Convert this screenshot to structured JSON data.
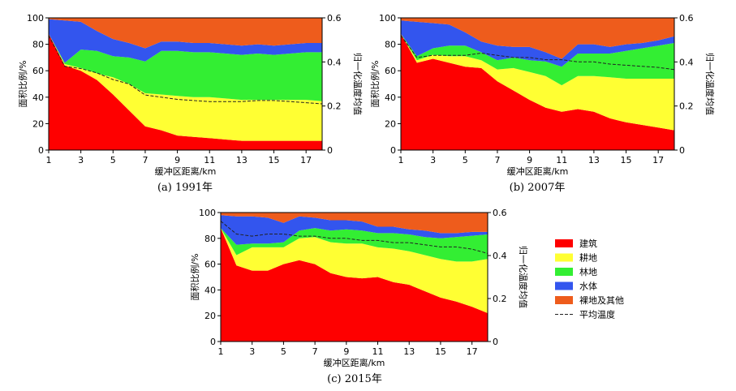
{
  "colors": {
    "建筑": "#fe0000",
    "耕地": "#ffff33",
    "林地": "#33ee33",
    "水体": "#3355ee",
    "裸地及其他": "#ee5c1c",
    "平均温度": "#222222"
  },
  "legend": {
    "items": [
      {
        "key": "建筑",
        "label": "建筑",
        "kind": "box"
      },
      {
        "key": "耕地",
        "label": "耕地",
        "kind": "box"
      },
      {
        "key": "林地",
        "label": "林地",
        "kind": "box"
      },
      {
        "key": "水体",
        "label": "水体",
        "kind": "box"
      },
      {
        "key": "裸地及其他",
        "label": "裸地及其他",
        "kind": "box"
      },
      {
        "key": "平均温度",
        "label": "平均温度",
        "kind": "dash"
      }
    ]
  },
  "chart_data": [
    {
      "type": "area",
      "stacked": true,
      "caption": "(a) 1991年",
      "xlabel": "缓冲区距离/km",
      "ylabel": "面积比例/%",
      "y2label": "归一化温度均值",
      "x": [
        1,
        2,
        3,
        4,
        5,
        6,
        7,
        8,
        9,
        10,
        11,
        12,
        13,
        14,
        15,
        16,
        17,
        18
      ],
      "xticks": [
        1,
        3,
        5,
        7,
        9,
        11,
        13,
        15,
        17
      ],
      "ylim": [
        0,
        100
      ],
      "yticks": [
        0,
        20,
        40,
        60,
        80,
        100
      ],
      "y2lim": [
        0,
        0.6
      ],
      "y2ticks": [
        0,
        0.2,
        0.4,
        0.6
      ],
      "series": [
        {
          "name": "建筑",
          "values": [
            88,
            64,
            60,
            53,
            42,
            30,
            18,
            15,
            11,
            10,
            9,
            8,
            7,
            7,
            7,
            7,
            7,
            7
          ]
        },
        {
          "name": "耕地",
          "values": [
            0,
            1,
            2,
            5,
            13,
            20,
            25,
            27,
            30,
            30,
            31,
            31,
            31,
            31,
            31,
            31,
            31,
            30
          ]
        },
        {
          "name": "林地",
          "values": [
            0,
            1,
            14,
            17,
            16,
            20,
            24,
            33,
            34,
            34,
            34,
            34,
            34,
            35,
            34,
            35,
            36,
            37
          ]
        },
        {
          "name": "水体",
          "values": [
            11,
            32,
            21,
            15,
            13,
            11,
            10,
            7,
            7,
            7,
            7,
            7,
            7,
            7,
            7,
            7,
            7,
            7
          ]
        },
        {
          "name": "裸地及其他",
          "values": [
            1,
            2,
            3,
            10,
            16,
            19,
            23,
            18,
            18,
            19,
            19,
            20,
            21,
            20,
            21,
            20,
            19,
            19
          ]
        }
      ],
      "line": {
        "name": "平均温度",
        "values": [
          0.52,
          0.38,
          0.37,
          0.35,
          0.32,
          0.3,
          0.25,
          0.24,
          0.23,
          0.225,
          0.22,
          0.22,
          0.22,
          0.225,
          0.225,
          0.22,
          0.215,
          0.21
        ]
      }
    },
    {
      "type": "area",
      "stacked": true,
      "caption": "(b) 2007年",
      "xlabel": "缓冲区距离/km",
      "ylabel": "面积比例/%",
      "y2label": "归一化温度均值",
      "x": [
        1,
        2,
        3,
        4,
        5,
        6,
        7,
        8,
        9,
        10,
        11,
        12,
        13,
        14,
        15,
        16,
        17,
        18
      ],
      "xticks": [
        1,
        3,
        5,
        7,
        9,
        11,
        13,
        15,
        17
      ],
      "ylim": [
        0,
        100
      ],
      "yticks": [
        0,
        20,
        40,
        60,
        80,
        100
      ],
      "y2lim": [
        0,
        0.6
      ],
      "y2ticks": [
        0,
        0.2,
        0.4,
        0.6
      ],
      "series": [
        {
          "name": "建筑",
          "values": [
            88,
            66,
            69,
            66,
            63,
            62,
            52,
            45,
            38,
            32,
            29,
            31,
            29,
            24,
            21,
            19,
            17,
            15
          ]
        },
        {
          "name": "耕地",
          "values": [
            0,
            2,
            3,
            5,
            8,
            6,
            9,
            17,
            21,
            24,
            20,
            25,
            27,
            31,
            33,
            35,
            37,
            39
          ]
        },
        {
          "name": "林地",
          "values": [
            0,
            3,
            5,
            8,
            8,
            6,
            7,
            8,
            9,
            11,
            14,
            17,
            17,
            18,
            21,
            23,
            25,
            27
          ]
        },
        {
          "name": "水体",
          "values": [
            10,
            26,
            19,
            16,
            10,
            8,
            11,
            8,
            10,
            7,
            6,
            7,
            7,
            5,
            5,
            4,
            4,
            5
          ]
        },
        {
          "name": "裸地及其他",
          "values": [
            2,
            3,
            4,
            5,
            11,
            18,
            21,
            22,
            22,
            26,
            31,
            20,
            20,
            22,
            20,
            19,
            17,
            14
          ]
        }
      ],
      "line": {
        "name": "平均温度",
        "values": [
          0.52,
          0.42,
          0.43,
          0.43,
          0.43,
          0.44,
          0.43,
          0.42,
          0.42,
          0.41,
          0.41,
          0.4,
          0.4,
          0.39,
          0.385,
          0.38,
          0.375,
          0.365
        ]
      }
    },
    {
      "type": "area",
      "stacked": true,
      "caption": "(c) 2015年",
      "xlabel": "缓冲区距离/km",
      "ylabel": "面积比例/%",
      "y2label": "归一化温度均值",
      "x": [
        1,
        2,
        3,
        4,
        5,
        6,
        7,
        8,
        9,
        10,
        11,
        12,
        13,
        14,
        15,
        16,
        17,
        18
      ],
      "xticks": [
        1,
        3,
        5,
        7,
        9,
        11,
        13,
        15,
        17
      ],
      "ylim": [
        0,
        100
      ],
      "yticks": [
        0,
        20,
        40,
        60,
        80,
        100
      ],
      "y2lim": [
        0,
        0.6
      ],
      "y2ticks": [
        0,
        0.2,
        0.4,
        0.6
      ],
      "series": [
        {
          "name": "建筑",
          "values": [
            88,
            59,
            55,
            55,
            60,
            63,
            60,
            53,
            50,
            49,
            50,
            46,
            44,
            39,
            34,
            31,
            27,
            22
          ]
        },
        {
          "name": "耕地",
          "values": [
            0,
            8,
            18,
            18,
            13,
            17,
            21,
            24,
            26,
            27,
            23,
            26,
            26,
            28,
            30,
            31,
            35,
            42
          ]
        },
        {
          "name": "林地",
          "values": [
            0,
            8,
            3,
            3,
            4,
            6,
            7,
            9,
            11,
            10,
            11,
            12,
            13,
            14,
            16,
            19,
            20,
            19
          ]
        },
        {
          "name": "水体",
          "values": [
            10,
            22,
            21,
            20,
            15,
            11,
            8,
            8,
            7,
            7,
            5,
            5,
            4,
            5,
            4,
            3,
            3,
            2
          ]
        },
        {
          "name": "裸地及其他",
          "values": [
            2,
            3,
            3,
            4,
            8,
            3,
            4,
            6,
            6,
            7,
            11,
            11,
            13,
            14,
            16,
            16,
            15,
            15
          ]
        }
      ],
      "line": {
        "name": "平均温度",
        "values": [
          0.56,
          0.5,
          0.49,
          0.5,
          0.5,
          0.49,
          0.49,
          0.48,
          0.48,
          0.47,
          0.47,
          0.46,
          0.46,
          0.45,
          0.44,
          0.44,
          0.43,
          0.41
        ]
      }
    }
  ]
}
